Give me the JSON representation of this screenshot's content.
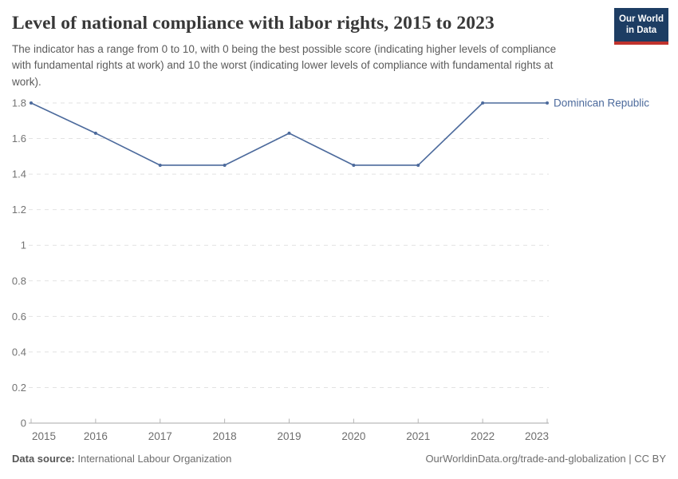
{
  "header": {
    "title": "Level of national compliance with labor rights, 2015 to 2023",
    "subtitle": "The indicator has a range from 0 to 10, with 0 being the best possible score (indicating higher levels of compliance with fundamental rights at work) and 10 the worst (indicating lower levels of compliance with fundamental rights at work).",
    "logo": {
      "line1": "Our World",
      "line2": "in Data",
      "bg_color": "#1d3d63",
      "accent_color": "#c0332d"
    }
  },
  "chart_data": {
    "type": "line",
    "title": "Level of national compliance with labor rights, 2015 to 2023",
    "x": [
      2015,
      2016,
      2017,
      2018,
      2019,
      2020,
      2021,
      2022,
      2023
    ],
    "x_tick_labels": [
      "2015",
      "2016",
      "2017",
      "2018",
      "2019",
      "2020",
      "2021",
      "2022",
      "2023"
    ],
    "series": [
      {
        "name": "Dominican Republic",
        "color": "#4c6a9c",
        "values": [
          1.8,
          1.63,
          1.45,
          1.45,
          1.63,
          1.45,
          1.45,
          1.8,
          1.8
        ]
      }
    ],
    "xlabel": "",
    "ylabel": "",
    "ylim": [
      0,
      1.8
    ],
    "y_ticks": [
      0,
      0.2,
      0.4,
      0.6,
      0.8,
      1,
      1.2,
      1.4,
      1.6,
      1.8
    ],
    "y_tick_labels": [
      "0",
      "0.2",
      "0.4",
      "0.6",
      "0.8",
      "1",
      "1.2",
      "1.4",
      "1.6",
      "1.8"
    ],
    "grid": "horizontal-dashed",
    "legend": "line-end-label"
  },
  "footer": {
    "source_label": "Data source:",
    "source_value": "International Labour Organization",
    "right_text": "OurWorldinData.org/trade-and-globalization | CC BY"
  }
}
